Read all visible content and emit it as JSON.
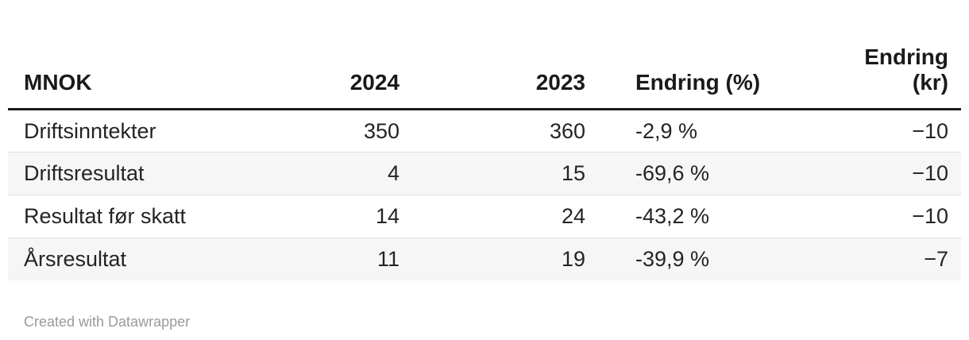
{
  "chart_data": {
    "type": "table",
    "title": "",
    "columns": [
      "MNOK",
      "2024",
      "2023",
      "Endring (%)",
      "Endring (kr)"
    ],
    "rows": [
      {
        "label": "Driftsinntekter",
        "y2024": 350,
        "y2023": 360,
        "endring_pct": -2.9,
        "endring_kr": -10
      },
      {
        "label": "Driftsresultat",
        "y2024": 4,
        "y2023": 15,
        "endring_pct": -69.6,
        "endring_kr": -10
      },
      {
        "label": "Resultat før skatt",
        "y2024": 14,
        "y2023": 24,
        "endring_pct": -43.2,
        "endring_kr": -10
      },
      {
        "label": "Årsresultat",
        "y2024": 11,
        "y2023": 19,
        "endring_pct": -39.9,
        "endring_kr": -7
      }
    ],
    "layout_hints": {
      "striped_rows": true,
      "header_rule": true,
      "number_format": "norwegian-comma-decimal"
    }
  },
  "table": {
    "headers": [
      {
        "label": "MNOK"
      },
      {
        "label": "2024"
      },
      {
        "label": "2023"
      },
      {
        "label": "Endring (%)"
      },
      {
        "label": "Endring\n(kr)"
      }
    ],
    "rows": [
      {
        "cells": [
          "Driftsinntekter",
          "350",
          "360",
          "-2,9 %",
          "−10"
        ]
      },
      {
        "cells": [
          "Driftsresultat",
          "4",
          "15",
          "-69,6 %",
          "−10"
        ]
      },
      {
        "cells": [
          "Resultat før skatt",
          "14",
          "24",
          "-43,2 %",
          "−10"
        ]
      },
      {
        "cells": [
          "Årsresultat",
          "11",
          "19",
          "-39,9 %",
          "−7"
        ]
      }
    ]
  },
  "footer": {
    "attribution": "Created with Datawrapper"
  },
  "colors": {
    "header_text": "#1a1a1a",
    "body_text": "#242424",
    "header_rule": "#1a1a1a",
    "row_stripe": "#f6f6f6",
    "row_divider": "#e0e0e0",
    "attribution_text": "#9a9a9a",
    "background": "#ffffff"
  }
}
